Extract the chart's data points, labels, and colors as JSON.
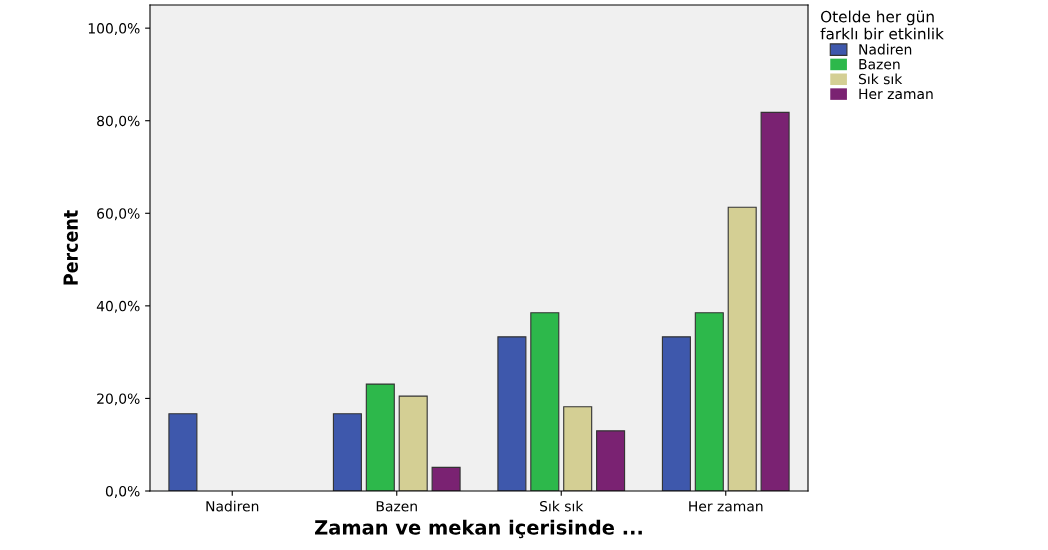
{
  "chart_data": {
    "type": "bar",
    "xlabel": "Zaman ve mekan içerisinde ...",
    "ylabel": "Percent",
    "legend_title": "Otelde her gün\nfarklı bir etkinlik",
    "legend": "top right",
    "grid": false,
    "categories": [
      "Nadiren",
      "Bazen",
      "Sık sık",
      "Her zaman"
    ],
    "series": [
      {
        "name": "Nadiren",
        "color": "#3e58ac",
        "values": [
          16.7,
          16.7,
          33.3,
          33.3
        ]
      },
      {
        "name": "Bazen",
        "color": "#2db84b",
        "values": [
          0,
          23.1,
          38.5,
          38.5
        ]
      },
      {
        "name": "Sık sık",
        "color": "#d4cf94",
        "values": [
          0,
          20.5,
          18.2,
          61.3
        ]
      },
      {
        "name": "Her zaman",
        "color": "#7a2272",
        "values": [
          0,
          5.1,
          13.0,
          81.8
        ]
      }
    ],
    "ylim": [
      0,
      105
    ],
    "yticks": [
      {
        "value": 0,
        "label": "0,0%"
      },
      {
        "value": 20,
        "label": "20,0%"
      },
      {
        "value": 40,
        "label": "40,0%"
      },
      {
        "value": 60,
        "label": "60,0%"
      },
      {
        "value": 80,
        "label": "80,0%"
      },
      {
        "value": 100,
        "label": "100,0%"
      }
    ]
  }
}
